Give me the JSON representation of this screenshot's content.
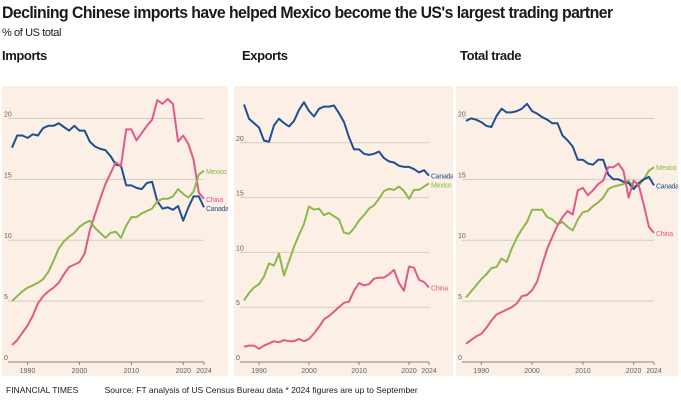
{
  "title": "Declining Chinese imports have helped Mexico become the US's largest trading partner",
  "subtitle": "% of US total",
  "footer": {
    "brand": "FINANCIAL TIMES",
    "source": "Source: FT analysis of US Census Bureau data * 2024 figures are up to September"
  },
  "colors": {
    "background": "#fcf0e6",
    "Canada": "#1d4f91",
    "China": "#e0598b",
    "Mexico": "#8cb84a",
    "grid": "#d4ccc4"
  },
  "chart_data": [
    {
      "type": "line",
      "title": "Imports",
      "x_range": [
        1987,
        2024
      ],
      "ylim": [
        0,
        22.5
      ],
      "yticks": [
        0,
        5,
        10,
        15,
        20
      ],
      "xticks": [
        "1990",
        "2000",
        "2010",
        "2020",
        "2024"
      ],
      "grid": true,
      "x": [
        1987,
        1988,
        1989,
        1990,
        1991,
        1992,
        1993,
        1994,
        1995,
        1996,
        1997,
        1998,
        1999,
        2000,
        2001,
        2002,
        2003,
        2004,
        2005,
        2006,
        2007,
        2008,
        2009,
        2010,
        2011,
        2012,
        2013,
        2014,
        2015,
        2016,
        2017,
        2018,
        2019,
        2020,
        2021,
        2022,
        2023,
        2024
      ],
      "series": [
        {
          "name": "Canada",
          "values": [
            17.6,
            18.6,
            18.6,
            18.4,
            18.7,
            18.6,
            19.2,
            19.4,
            19.4,
            19.6,
            19.3,
            19.0,
            19.4,
            19.0,
            19.0,
            18.1,
            17.7,
            17.5,
            17.4,
            16.9,
            16.2,
            16.1,
            14.5,
            14.5,
            14.3,
            14.2,
            14.7,
            14.8,
            13.2,
            12.6,
            12.7,
            12.5,
            12.8,
            11.6,
            12.7,
            13.6,
            13.6,
            12.7
          ]
        },
        {
          "name": "China",
          "values": [
            1.4,
            1.8,
            2.4,
            3.0,
            3.8,
            4.8,
            5.4,
            5.8,
            6.1,
            6.5,
            7.2,
            7.8,
            8.0,
            8.2,
            8.9,
            10.8,
            12.1,
            13.4,
            14.6,
            15.5,
            16.4,
            16.1,
            19.1,
            19.1,
            18.2,
            18.8,
            19.4,
            19.9,
            21.5,
            21.2,
            21.6,
            21.2,
            18.1,
            18.6,
            17.9,
            16.6,
            13.9,
            13.4
          ]
        },
        {
          "name": "Mexico",
          "values": [
            5.0,
            5.4,
            5.8,
            6.1,
            6.3,
            6.5,
            6.8,
            7.4,
            8.3,
            9.3,
            9.9,
            10.3,
            10.6,
            11.1,
            11.4,
            11.6,
            11.0,
            10.6,
            10.2,
            10.6,
            10.7,
            10.2,
            11.2,
            11.9,
            11.9,
            12.2,
            12.4,
            12.6,
            13.2,
            13.4,
            13.4,
            13.6,
            14.2,
            13.8,
            13.5,
            14.0,
            15.4,
            15.7
          ]
        }
      ]
    },
    {
      "type": "line",
      "title": "Exports",
      "x_range": [
        1987,
        2024
      ],
      "ylim": [
        0,
        25
      ],
      "yticks": [
        0,
        5,
        10,
        15,
        20
      ],
      "xticks": [
        "1990",
        "2000",
        "2010",
        "2020",
        "2024"
      ],
      "grid": true,
      "x": [
        1987,
        1988,
        1989,
        1990,
        1991,
        1992,
        1993,
        1994,
        1995,
        1996,
        1997,
        1998,
        1999,
        2000,
        2001,
        2002,
        2003,
        2004,
        2005,
        2006,
        2007,
        2008,
        2009,
        2010,
        2011,
        2012,
        2013,
        2014,
        2015,
        2016,
        2017,
        2018,
        2019,
        2020,
        2021,
        2022,
        2023,
        2024
      ],
      "series": [
        {
          "name": "Canada",
          "values": [
            23.5,
            22.2,
            21.8,
            21.4,
            20.2,
            20.1,
            21.6,
            22.2,
            21.8,
            21.5,
            22.0,
            23.0,
            23.7,
            22.9,
            22.4,
            23.1,
            23.3,
            23.3,
            23.4,
            22.7,
            21.9,
            20.5,
            19.4,
            19.4,
            19.0,
            18.9,
            19.0,
            19.2,
            18.6,
            18.3,
            18.2,
            17.9,
            17.8,
            17.8,
            17.6,
            17.3,
            17.5,
            17.0
          ]
        },
        {
          "name": "Mexico",
          "values": [
            5.6,
            6.3,
            6.8,
            7.1,
            7.8,
            9.0,
            8.8,
            9.9,
            7.9,
            9.2,
            10.5,
            11.6,
            12.6,
            14.2,
            13.9,
            14.0,
            13.4,
            13.6,
            13.3,
            13.0,
            11.8,
            11.7,
            12.2,
            12.9,
            13.4,
            14.0,
            14.3,
            14.9,
            15.6,
            15.8,
            15.7,
            16.0,
            15.6,
            14.9,
            15.7,
            15.7,
            16.0,
            16.3
          ]
        },
        {
          "name": "China",
          "values": [
            1.4,
            1.5,
            1.5,
            1.2,
            1.5,
            1.7,
            1.9,
            1.8,
            2.0,
            1.9,
            1.9,
            2.1,
            1.9,
            2.1,
            2.6,
            3.2,
            3.9,
            4.2,
            4.6,
            5.0,
            5.4,
            5.5,
            6.5,
            7.2,
            7.0,
            7.1,
            7.6,
            7.7,
            7.7,
            8.0,
            8.4,
            7.2,
            6.5,
            8.7,
            8.6,
            7.5,
            7.3,
            6.8
          ]
        }
      ]
    },
    {
      "type": "line",
      "title": "Total trade",
      "x_range": [
        1987,
        2024
      ],
      "ylim": [
        0,
        22.5
      ],
      "yticks": [
        0,
        5,
        10,
        15,
        20
      ],
      "xticks": [
        "1990",
        "2000",
        "2010",
        "2020",
        "2024"
      ],
      "grid": true,
      "x": [
        1987,
        1988,
        1989,
        1990,
        1991,
        1992,
        1993,
        1994,
        1995,
        1996,
        1997,
        1998,
        1999,
        2000,
        2001,
        2002,
        2003,
        2004,
        2005,
        2006,
        2007,
        2008,
        2009,
        2010,
        2011,
        2012,
        2013,
        2014,
        2015,
        2016,
        2017,
        2018,
        2019,
        2020,
        2021,
        2022,
        2023,
        2024
      ],
      "series": [
        {
          "name": "Mexico",
          "values": [
            5.3,
            5.8,
            6.3,
            6.8,
            7.2,
            7.7,
            7.8,
            8.5,
            8.2,
            9.3,
            10.2,
            10.9,
            11.5,
            12.5,
            12.5,
            12.5,
            11.9,
            11.7,
            11.3,
            11.5,
            11.1,
            10.8,
            11.7,
            12.3,
            12.4,
            12.8,
            13.1,
            13.5,
            14.2,
            14.4,
            14.5,
            14.6,
            14.9,
            14.4,
            14.5,
            15.0,
            15.7,
            16.0
          ]
        },
        {
          "name": "Canada",
          "values": [
            19.8,
            20.0,
            19.9,
            19.7,
            19.4,
            19.3,
            20.2,
            20.8,
            20.5,
            20.5,
            20.6,
            20.8,
            21.2,
            20.6,
            20.4,
            20.1,
            19.9,
            19.6,
            19.6,
            18.6,
            18.2,
            17.7,
            16.6,
            16.6,
            16.3,
            16.2,
            16.6,
            16.6,
            15.4,
            15.0,
            15.0,
            14.8,
            14.7,
            14.2,
            14.7,
            15.0,
            15.2,
            14.5
          ]
        },
        {
          "name": "China",
          "values": [
            1.5,
            1.8,
            2.1,
            2.3,
            2.8,
            3.4,
            3.9,
            4.1,
            4.3,
            4.5,
            4.8,
            5.4,
            5.5,
            5.9,
            6.6,
            8.0,
            9.3,
            10.3,
            11.2,
            11.9,
            12.4,
            12.1,
            14.1,
            14.3,
            13.7,
            14.1,
            14.6,
            14.9,
            16.0,
            16.0,
            16.3,
            15.7,
            13.5,
            14.9,
            14.5,
            12.9,
            11.1,
            10.6
          ]
        }
      ]
    }
  ]
}
